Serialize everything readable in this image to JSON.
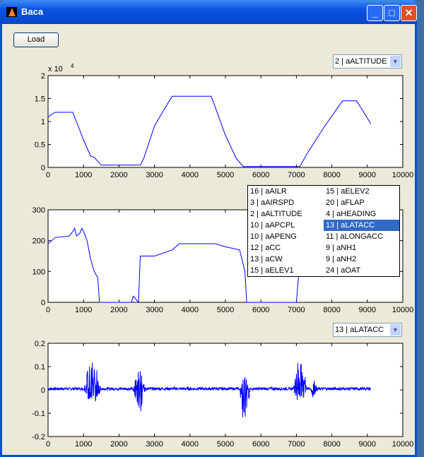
{
  "window": {
    "title": "Baca",
    "minimize": "_",
    "maximize": "□",
    "close": "✕"
  },
  "load_label": "Load",
  "top_popup": {
    "value": "2 | aALTITUDE"
  },
  "bottom_popup": {
    "value": "13 | aLATACC"
  },
  "list_items": [
    "16 | aAILR",
    "3 | aAIRSPD",
    "2 | aALTITUDE",
    "10 | aAPCPL",
    "10 | aAPENG",
    "12 | aCC",
    "13 | aCW",
    "15 | aELEV1",
    "15 | aELEV2",
    "20 | aFLAP",
    "4 | aHEADING",
    "13 | aLATACC",
    "11 | aLONGACC",
    "9 | aNH1",
    "9 | aNH2",
    "24 | aOAT"
  ],
  "selected_index": 11,
  "colors": {
    "line": "#0000ff",
    "highlight": "#316ac5"
  },
  "chart_data": [
    {
      "type": "line",
      "xlim": [
        0,
        10000
      ],
      "ylim": [
        0,
        2
      ],
      "exponent_label": "x 10",
      "exponent": "4",
      "xticks": [
        "0",
        "1000",
        "2000",
        "3000",
        "4000",
        "5000",
        "6000",
        "7000",
        "8000",
        "9000",
        "10000"
      ],
      "yticks": [
        "0",
        "0.5",
        "1",
        "1.5",
        "2"
      ],
      "x": [
        0,
        200,
        700,
        1000,
        1200,
        1300,
        1500,
        2600,
        2700,
        3000,
        3300,
        3500,
        4600,
        5000,
        5300,
        5500,
        7100,
        7300,
        7800,
        8300,
        8700,
        8900,
        9100
      ],
      "y": [
        1.1,
        1.2,
        1.2,
        0.6,
        0.25,
        0.22,
        0.05,
        0.05,
        0.2,
        0.9,
        1.3,
        1.55,
        1.55,
        0.7,
        0.2,
        0.02,
        0.02,
        0.3,
        0.9,
        1.45,
        1.45,
        1.2,
        0.95
      ]
    },
    {
      "type": "line",
      "xlim": [
        0,
        10000
      ],
      "ylim": [
        0,
        300
      ],
      "xticks": [
        "0",
        "1000",
        "2000",
        "3000",
        "4000",
        "5000",
        "6000",
        "7000",
        "8000",
        "9000",
        "10000"
      ],
      "yticks": [
        "0",
        "100",
        "200",
        "300"
      ],
      "x": [
        0,
        100,
        200,
        600,
        700,
        750,
        800,
        900,
        950,
        1000,
        1100,
        1200,
        1300,
        1400,
        1450,
        2350,
        2400,
        2550,
        2600,
        3000,
        3500,
        3700,
        4700,
        5000,
        5400,
        5550,
        5600,
        7000,
        7100,
        7300,
        9100
      ],
      "y": [
        190,
        200,
        210,
        215,
        230,
        240,
        215,
        225,
        240,
        230,
        200,
        140,
        100,
        80,
        0,
        0,
        20,
        0,
        150,
        150,
        170,
        190,
        190,
        180,
        170,
        100,
        0,
        0,
        140,
        190,
        200
      ]
    },
    {
      "type": "line",
      "xlim": [
        0,
        10000
      ],
      "ylim": [
        -0.2,
        0.2
      ],
      "xticks": [
        "0",
        "1000",
        "2000",
        "3000",
        "4000",
        "5000",
        "6000",
        "7000",
        "8000",
        "9000",
        "10000"
      ],
      "yticks": [
        "-0.2",
        "-0.1",
        "0",
        "0.1",
        "0.2"
      ],
      "baseline": 0.005,
      "x_end": 9100,
      "bursts": [
        {
          "x": [
            1000,
            1500
          ],
          "max": 0.13,
          "min": -0.06
        },
        {
          "x": [
            2400,
            2750
          ],
          "max": 0.09,
          "min": -0.1
        },
        {
          "x": [
            5400,
            5700
          ],
          "max": 0.06,
          "min": -0.15
        },
        {
          "x": [
            6900,
            7300
          ],
          "max": 0.14,
          "min": -0.06
        },
        {
          "x": [
            7400,
            7600
          ],
          "max": 0.04,
          "min": -0.04
        }
      ]
    }
  ]
}
